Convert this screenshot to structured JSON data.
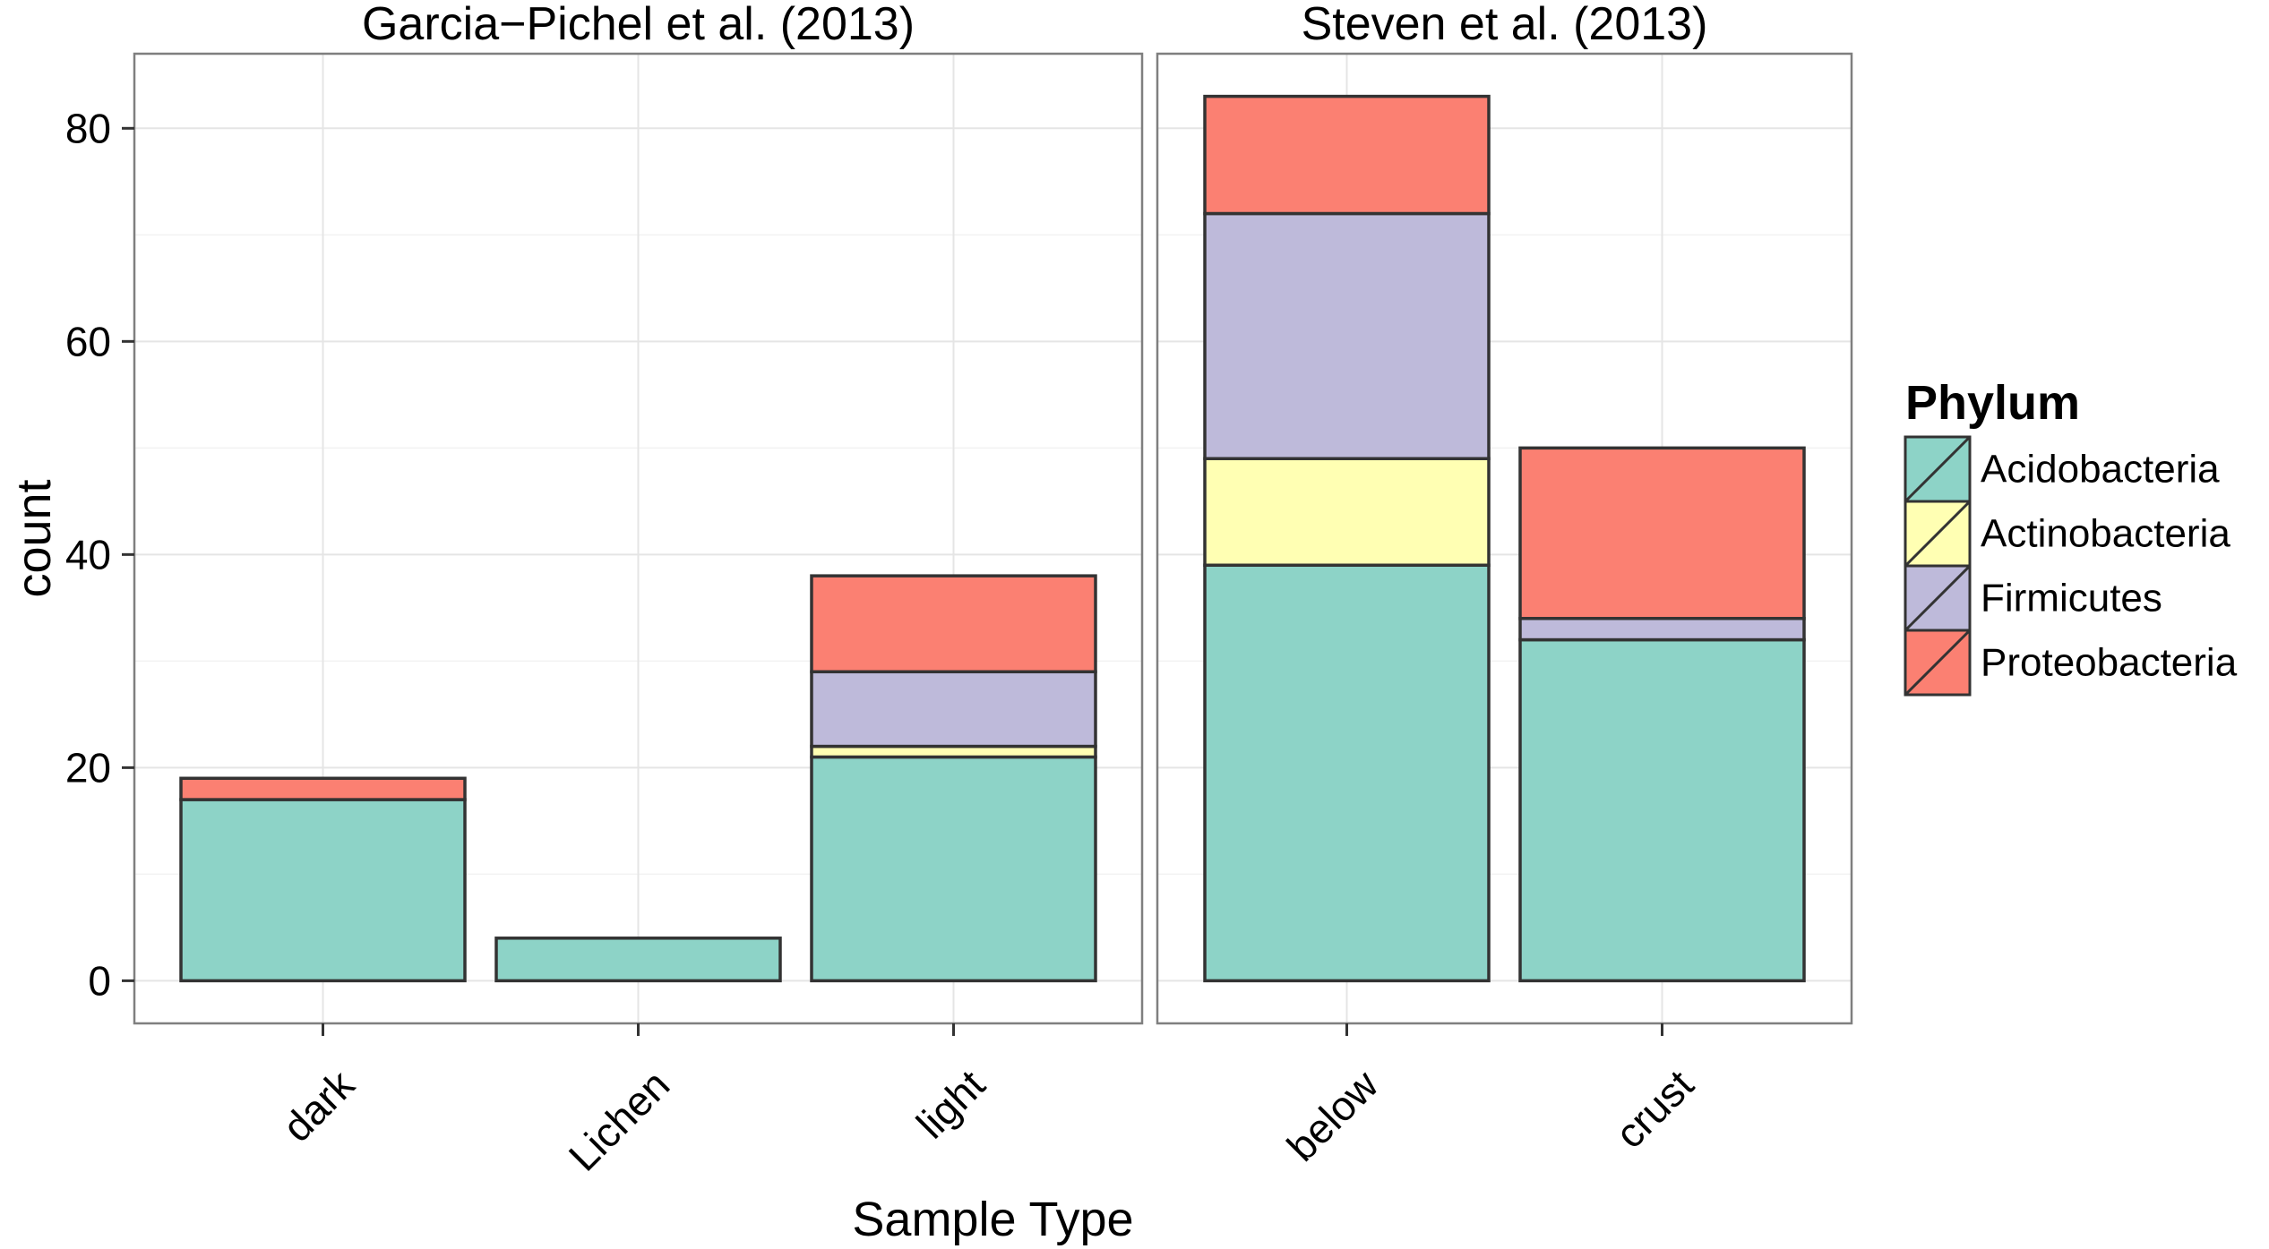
{
  "chart_data": {
    "type": "bar",
    "stacked": true,
    "xlabel": "Sample Type",
    "ylabel": "count",
    "ylim": [
      -4,
      87
    ],
    "yticks": [
      0,
      20,
      40,
      60,
      80
    ],
    "grid": true,
    "legend": {
      "title": "Phylum",
      "position": "right",
      "entries": [
        "Acidobacteria",
        "Actinobacteria",
        "Firmicutes",
        "Proteobacteria"
      ]
    },
    "colors": {
      "Acidobacteria": "#8dd3c7",
      "Actinobacteria": "#ffffb3",
      "Firmicutes": "#bebada",
      "Proteobacteria": "#fb8072"
    },
    "panels": [
      {
        "title": "Garcia−Pichel et al. (2013)",
        "categories": [
          "dark",
          "Lichen",
          "light"
        ],
        "series": [
          {
            "name": "Acidobacteria",
            "values": [
              17,
              4,
              21
            ]
          },
          {
            "name": "Actinobacteria",
            "values": [
              0,
              0,
              1
            ]
          },
          {
            "name": "Firmicutes",
            "values": [
              0,
              0,
              7
            ]
          },
          {
            "name": "Proteobacteria",
            "values": [
              2,
              0,
              9
            ]
          }
        ]
      },
      {
        "title": "Steven et al. (2013)",
        "categories": [
          "below",
          "crust"
        ],
        "series": [
          {
            "name": "Acidobacteria",
            "values": [
              39,
              32
            ]
          },
          {
            "name": "Actinobacteria",
            "values": [
              10,
              0
            ]
          },
          {
            "name": "Firmicutes",
            "values": [
              23,
              2
            ]
          },
          {
            "name": "Proteobacteria",
            "values": [
              11,
              16
            ]
          }
        ]
      }
    ]
  }
}
